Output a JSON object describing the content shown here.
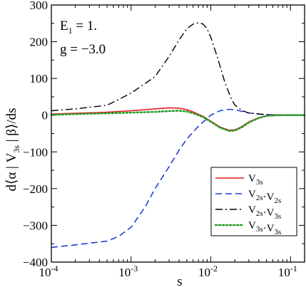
{
  "chart_data": {
    "type": "line",
    "xscale": "log",
    "xlim": [
      0.0001,
      0.15
    ],
    "ylim": [
      -400,
      300
    ],
    "xlabel": "s",
    "ylabel": "d⟨α | V3s | β⟩/ds",
    "x_ticks": [
      {
        "value": 0.0001,
        "base": "10",
        "exp": "-4"
      },
      {
        "value": 0.001,
        "base": "10",
        "exp": "-3"
      },
      {
        "value": 0.01,
        "base": "10",
        "exp": "-2"
      },
      {
        "value": 0.1,
        "base": "10",
        "exp": "-1"
      }
    ],
    "y_ticks": [
      300,
      200,
      100,
      0,
      -100,
      -200,
      -300,
      -400
    ],
    "annotations": [
      {
        "text": "E1 = 1."
      },
      {
        "text": "g = −3.0"
      }
    ],
    "legend": {
      "position": "bottom-right"
    },
    "series": [
      {
        "name": "V3s",
        "color": "#e31a1c",
        "style": "solid",
        "points": [
          [
            0.0001,
            3
          ],
          [
            0.0002,
            5
          ],
          [
            0.0005,
            8
          ],
          [
            0.001,
            12
          ],
          [
            0.002,
            17
          ],
          [
            0.003,
            20
          ],
          [
            0.004,
            19
          ],
          [
            0.005,
            15
          ],
          [
            0.006,
            9
          ],
          [
            0.008,
            -3
          ],
          [
            0.01,
            -16
          ],
          [
            0.013,
            -32
          ],
          [
            0.017,
            -41
          ],
          [
            0.02,
            -40
          ],
          [
            0.025,
            -30
          ],
          [
            0.03,
            -18
          ],
          [
            0.04,
            -7
          ],
          [
            0.05,
            -2
          ],
          [
            0.07,
            0
          ],
          [
            0.15,
            0
          ]
        ]
      },
      {
        "name": "V2s·V2s",
        "color": "#1f3fd6",
        "style": "dashed",
        "points": [
          [
            0.0001,
            -360
          ],
          [
            0.0002,
            -353
          ],
          [
            0.0005,
            -343
          ],
          [
            0.0007,
            -330
          ],
          [
            0.001,
            -305
          ],
          [
            0.0015,
            -250
          ],
          [
            0.002,
            -200
          ],
          [
            0.003,
            -140
          ],
          [
            0.004,
            -95
          ],
          [
            0.005,
            -65
          ],
          [
            0.007,
            -30
          ],
          [
            0.01,
            0
          ],
          [
            0.013,
            12
          ],
          [
            0.017,
            16
          ],
          [
            0.02,
            15
          ],
          [
            0.025,
            10
          ],
          [
            0.03,
            6
          ],
          [
            0.04,
            3
          ],
          [
            0.06,
            1
          ],
          [
            0.1,
            0
          ],
          [
            0.15,
            0
          ]
        ]
      },
      {
        "name": "V2s·V3s",
        "color": "#000000",
        "style": "dashdot",
        "points": [
          [
            0.0001,
            12
          ],
          [
            0.0002,
            17
          ],
          [
            0.0005,
            27
          ],
          [
            0.001,
            60
          ],
          [
            0.002,
            105
          ],
          [
            0.003,
            160
          ],
          [
            0.004,
            205
          ],
          [
            0.005,
            235
          ],
          [
            0.006,
            248
          ],
          [
            0.007,
            252
          ],
          [
            0.008,
            248
          ],
          [
            0.009,
            235
          ],
          [
            0.01,
            212
          ],
          [
            0.012,
            160
          ],
          [
            0.015,
            90
          ],
          [
            0.018,
            45
          ],
          [
            0.02,
            28
          ],
          [
            0.025,
            12
          ],
          [
            0.03,
            6
          ],
          [
            0.05,
            1
          ],
          [
            0.15,
            0
          ]
        ]
      },
      {
        "name": "V3s·V3s",
        "color": "#2a9d2a",
        "style": "dotted",
        "points": [
          [
            0.0001,
            1
          ],
          [
            0.0002,
            3
          ],
          [
            0.0005,
            5
          ],
          [
            0.001,
            7
          ],
          [
            0.002,
            9
          ],
          [
            0.003,
            11
          ],
          [
            0.004,
            12
          ],
          [
            0.005,
            10
          ],
          [
            0.006,
            5
          ],
          [
            0.008,
            -5
          ],
          [
            0.01,
            -18
          ],
          [
            0.013,
            -34
          ],
          [
            0.017,
            -43
          ],
          [
            0.02,
            -42
          ],
          [
            0.025,
            -32
          ],
          [
            0.03,
            -20
          ],
          [
            0.04,
            -8
          ],
          [
            0.05,
            -2
          ],
          [
            0.07,
            0
          ],
          [
            0.15,
            0
          ]
        ]
      }
    ]
  }
}
